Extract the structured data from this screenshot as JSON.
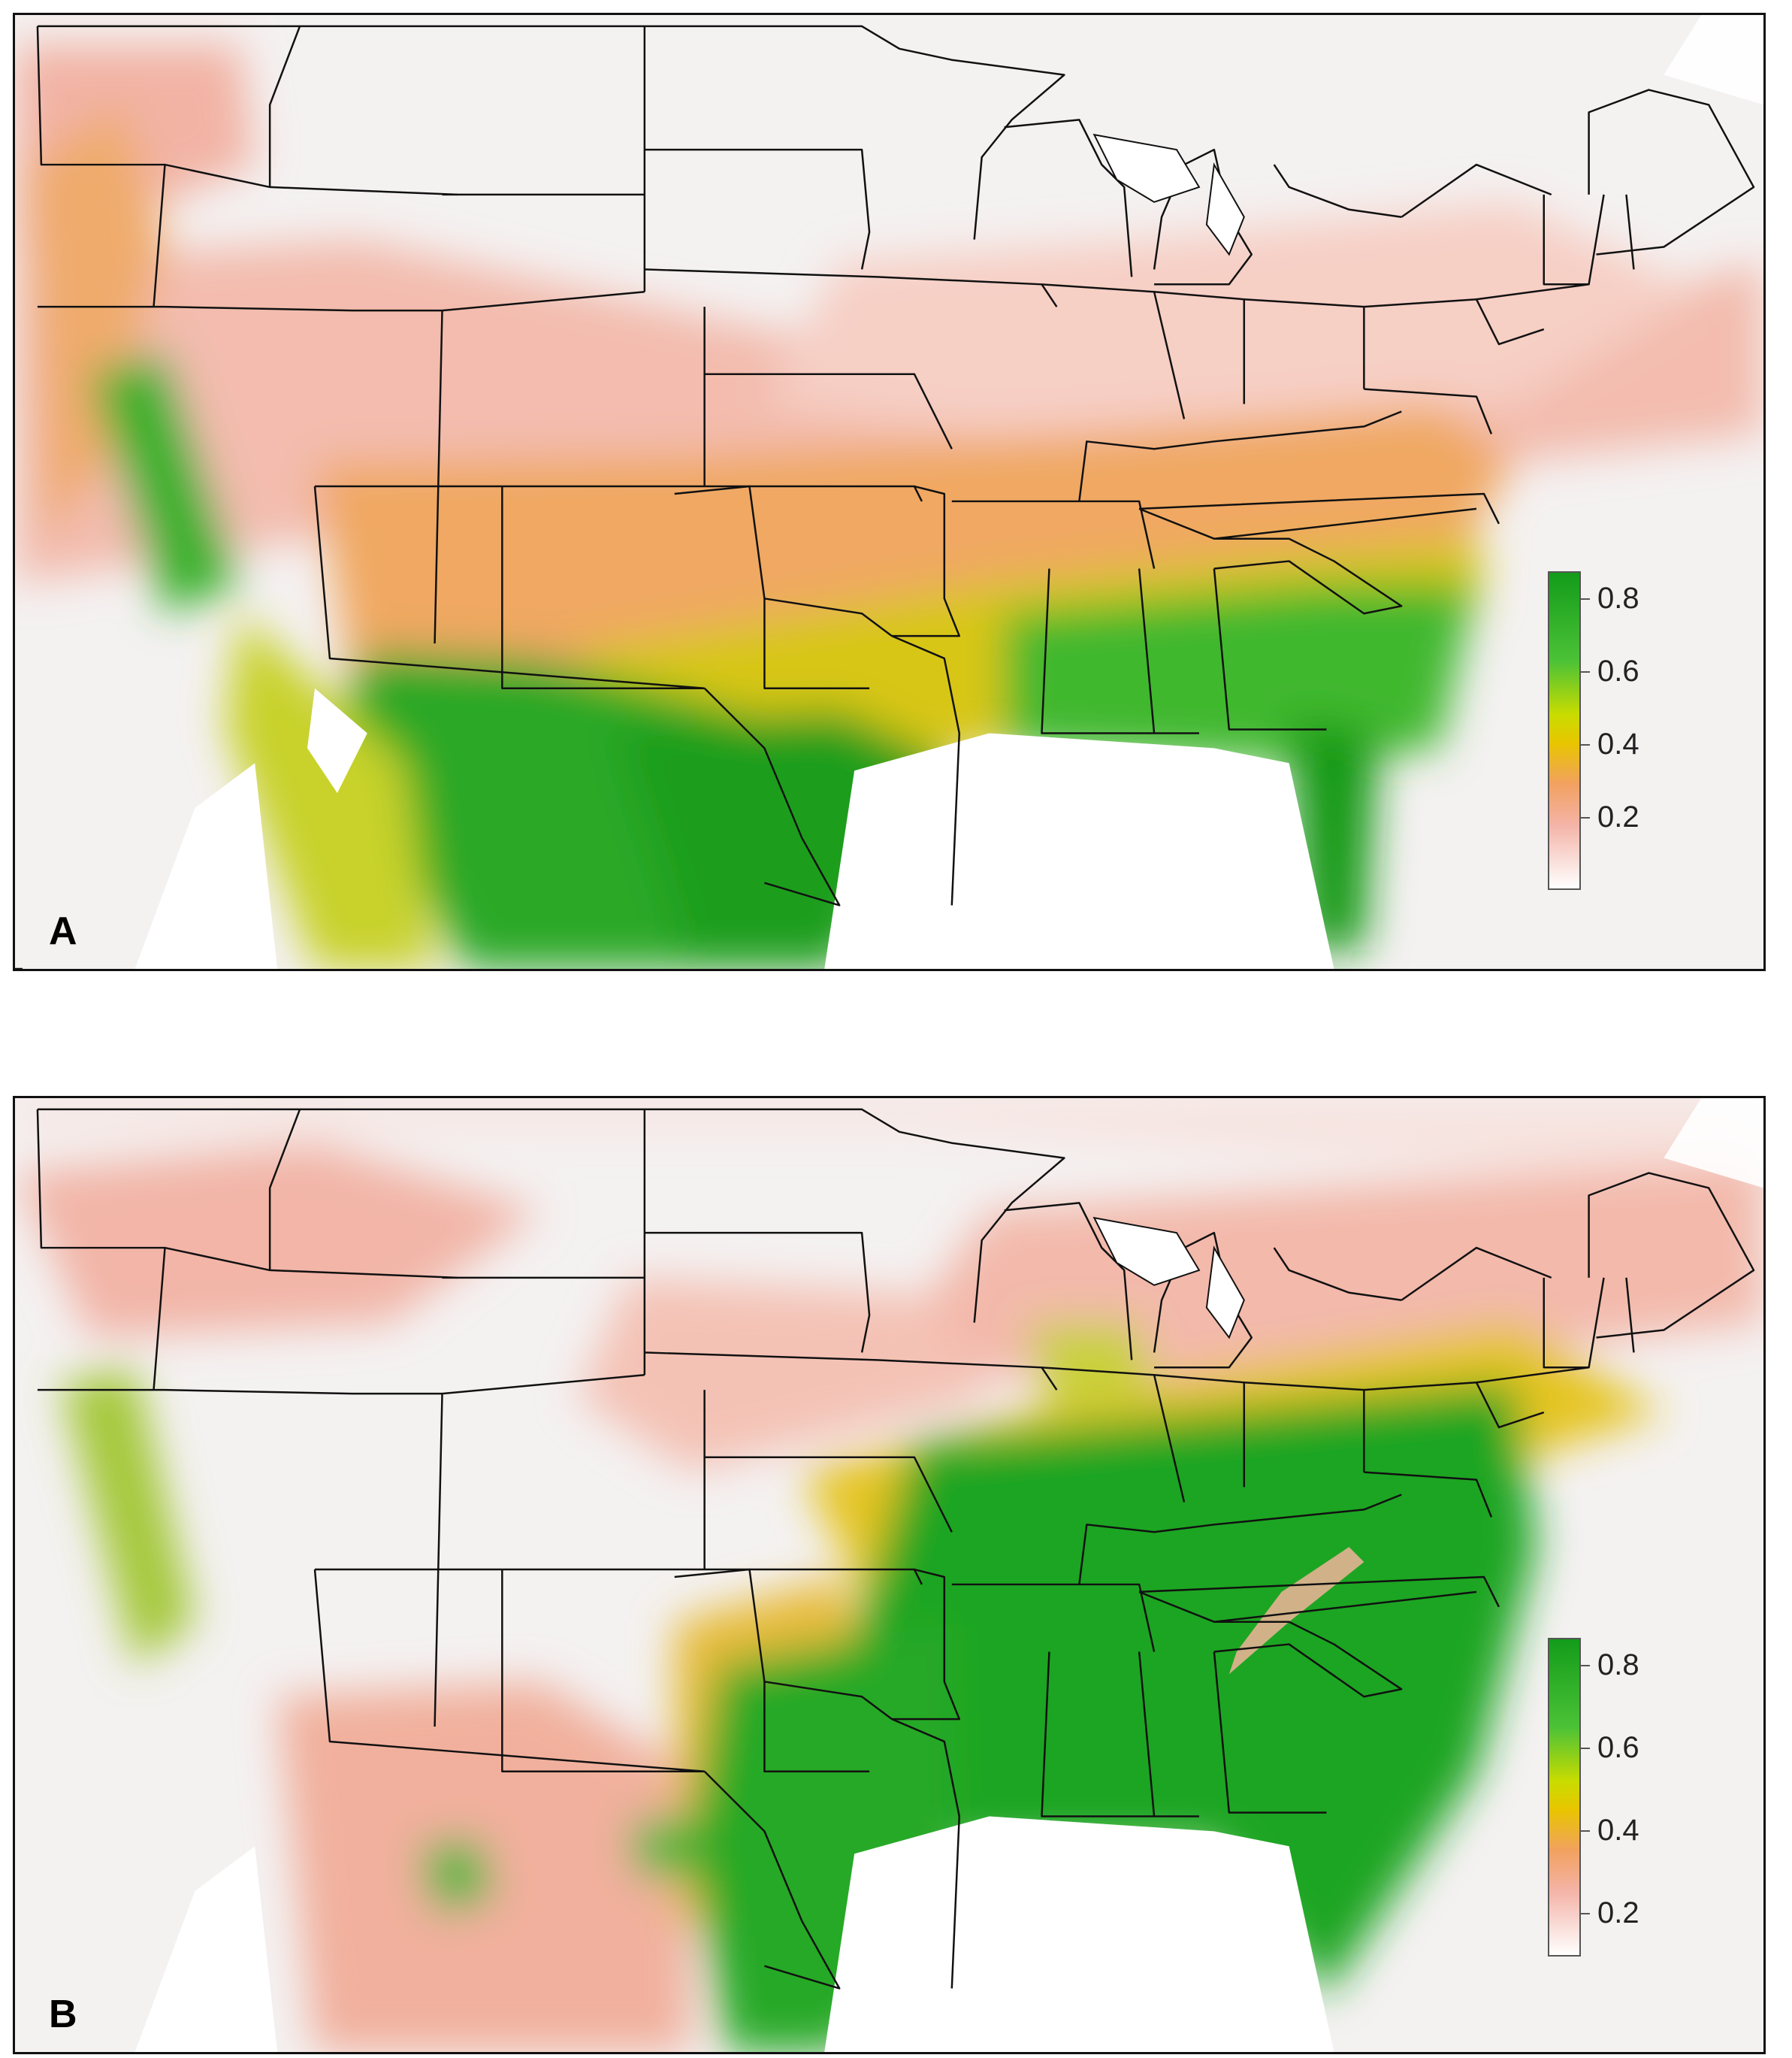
{
  "panels": [
    {
      "id": "A",
      "label": "A"
    },
    {
      "id": "B",
      "label": "B"
    }
  ],
  "legend": {
    "title": "",
    "ticks": [
      "0.8",
      "0.6",
      "0.4",
      "0.2"
    ],
    "tick_values": [
      0.8,
      0.6,
      0.4,
      0.2
    ],
    "range": [
      0,
      0.87
    ],
    "colors": [
      "#ffffff",
      "#f4b4a8",
      "#f2a160",
      "#e8c500",
      "#c9dc00",
      "#4cc237",
      "#139c1a"
    ]
  },
  "colors": {
    "low": "#f7f4f4",
    "pink": "#f3b7a9",
    "orange": "#f0a45f",
    "yellow": "#dcca10",
    "lightgreen": "#7ccf30",
    "green": "#1fa824",
    "border": "#111111",
    "water": "#ffffff"
  }
}
